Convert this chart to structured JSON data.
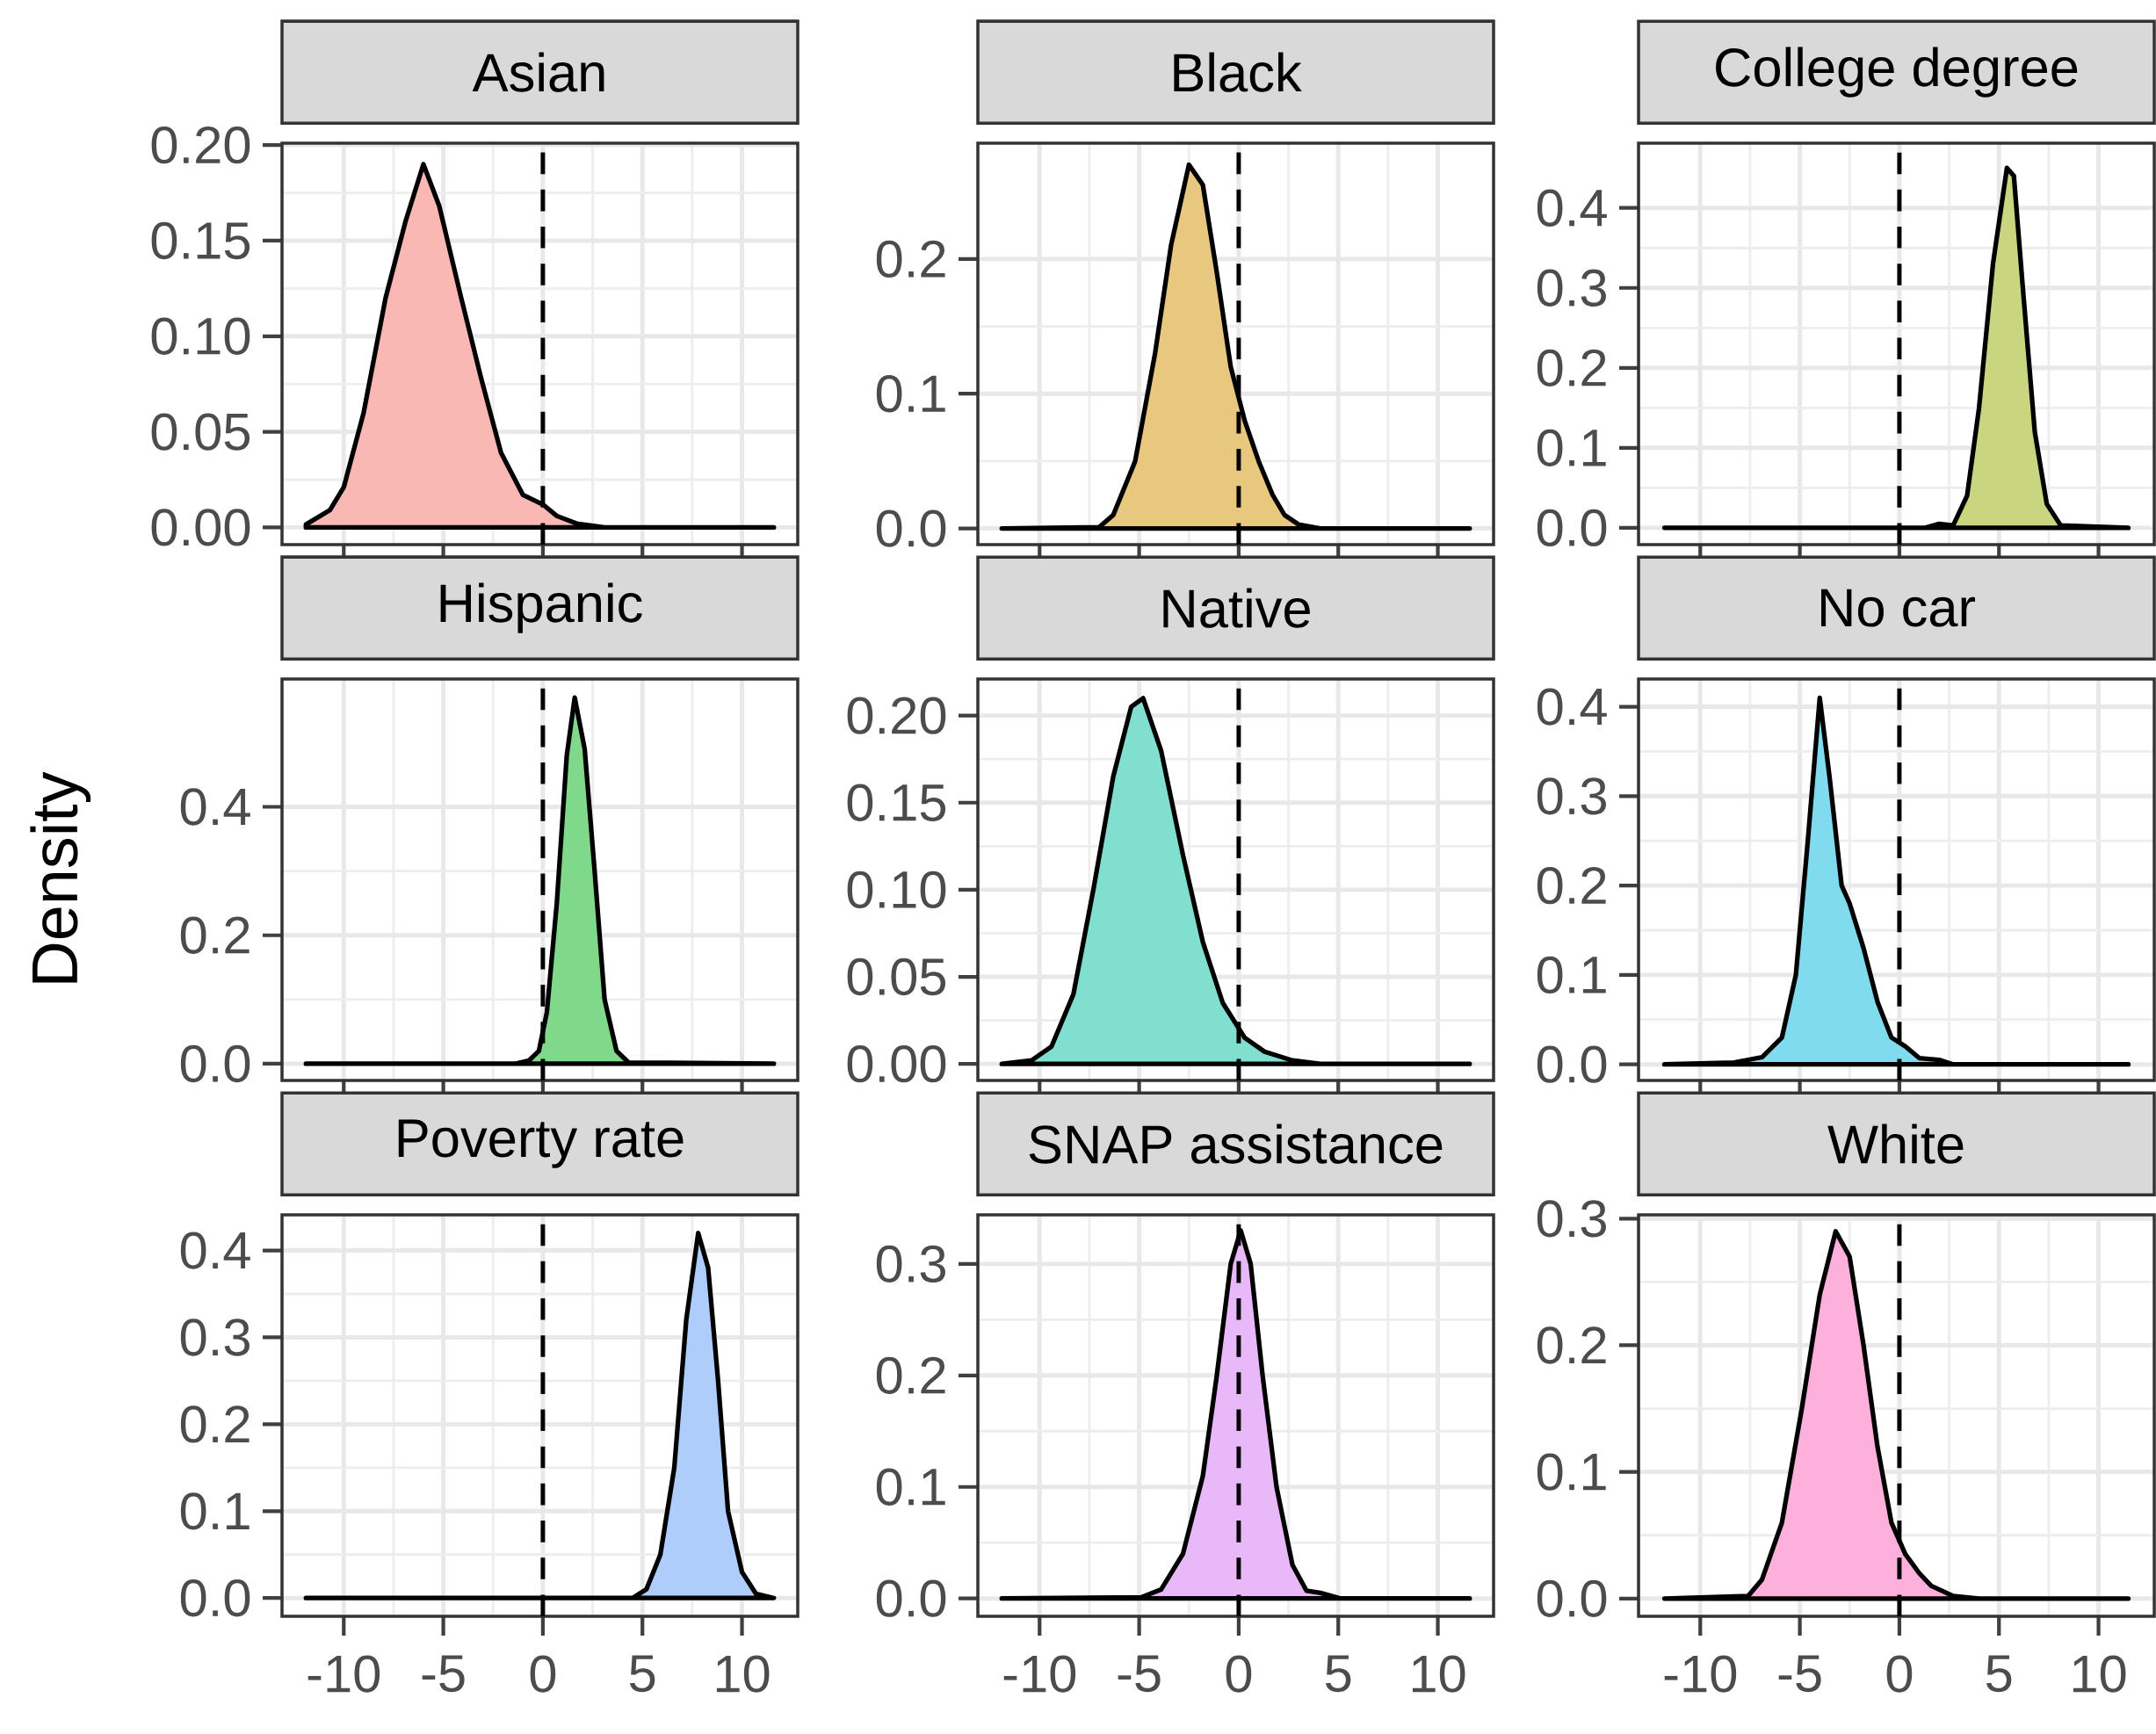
{
  "chart_data": [
    {
      "type": "area",
      "title": "Asian",
      "color": "#f9b8b4",
      "x": [
        -11.9,
        -10.7,
        -10,
        -9,
        -7.9,
        -6.9,
        -6,
        -5.2,
        -4.1,
        -3.1,
        -2.1,
        -1,
        0,
        0.7,
        1.7,
        3.1,
        11.6
      ],
      "values": [
        0.0015,
        0.009,
        0.021,
        0.06,
        0.12,
        0.16,
        0.19,
        0.168,
        0.12,
        0.078,
        0.039,
        0.017,
        0.012,
        0.006,
        0.002,
        0,
        0
      ],
      "xlim": [
        -13.1,
        12.8
      ],
      "ylim": [
        -0.009,
        0.201
      ],
      "xticks": [
        -10,
        -5,
        0,
        5,
        10
      ],
      "yticks": [
        {
          "value": 0,
          "label": "0.00"
        },
        0.05,
        {
          "value": 0.1,
          "label": "0.10"
        },
        0.15,
        {
          "value": 0.2,
          "label": "0.20"
        }
      ],
      "tick_labels": "y",
      "grid": true,
      "ref_lines": [
        {
          "axis": "x",
          "value": 0,
          "line_style": "dashed"
        }
      ]
    },
    {
      "type": "area",
      "title": "Black",
      "color": "#e8c77e",
      "x": [
        -11.9,
        -7,
        -6.3,
        -5.2,
        -4.2,
        -3.4,
        -2.5,
        -1.8,
        -1.1,
        -0.4,
        0.3,
        1,
        1.7,
        2.3,
        3,
        4.1,
        11.6
      ],
      "values": [
        0,
        0.001,
        0.01,
        0.05,
        0.13,
        0.21,
        0.27,
        0.255,
        0.19,
        0.12,
        0.08,
        0.05,
        0.025,
        0.01,
        0.003,
        0,
        0
      ],
      "xlim": [
        -13.1,
        12.8
      ],
      "ylim": [
        -0.012,
        0.286
      ],
      "xticks": [
        -10,
        -5,
        0,
        5,
        10
      ],
      "yticks": [
        {
          "value": 0,
          "label": "0.0"
        },
        0.1,
        0.2
      ],
      "tick_labels": "y",
      "grid": true,
      "ref_lines": [
        {
          "axis": "x",
          "value": 0,
          "line_style": "dashed"
        }
      ]
    },
    {
      "type": "area",
      "title": "College degree",
      "color": "#c9d57f",
      "x": [
        -11.8,
        1.3,
        2,
        2.7,
        3.4,
        4,
        4.7,
        5.4,
        5.75,
        6.2,
        6.8,
        7.4,
        8.1,
        11.5
      ],
      "values": [
        0,
        0,
        0.005,
        0.003,
        0.04,
        0.15,
        0.33,
        0.45,
        0.44,
        0.3,
        0.12,
        0.03,
        0.003,
        0
      ],
      "xlim": [
        -13.1,
        12.8
      ],
      "ylim": [
        -0.021,
        0.481
      ],
      "xticks": [
        -10,
        -5,
        0,
        5,
        10
      ],
      "yticks": [
        {
          "value": 0,
          "label": "0.0"
        },
        0.1,
        0.2,
        0.3,
        0.4
      ],
      "tick_labels": "y",
      "grid": true,
      "ref_lines": [
        {
          "axis": "x",
          "value": 0,
          "line_style": "dashed"
        }
      ]
    },
    {
      "type": "area",
      "title": "Hispanic",
      "ylabel": "Density",
      "color": "#80d88b",
      "x": [
        -11.9,
        -1.4,
        -0.7,
        -0.2,
        0.2,
        0.7,
        1.2,
        1.6,
        2.1,
        2.6,
        3.1,
        3.7,
        4.3,
        11.6
      ],
      "values": [
        0,
        0,
        0.005,
        0.02,
        0.08,
        0.25,
        0.48,
        0.57,
        0.49,
        0.3,
        0.1,
        0.02,
        0.002,
        0
      ],
      "xlim": [
        -13.1,
        12.8
      ],
      "ylim": [
        -0.026,
        0.599
      ],
      "xticks": [
        -10,
        -5,
        0,
        5,
        10
      ],
      "yticks": [
        {
          "value": 0,
          "label": "0.0"
        },
        0.2,
        0.4
      ],
      "tick_labels": "y",
      "grid": true,
      "ref_lines": [
        {
          "axis": "x",
          "value": 0,
          "line_style": "dashed"
        }
      ]
    },
    {
      "type": "area",
      "title": "Native",
      "color": "#80dfcf",
      "x": [
        -11.9,
        -10.4,
        -9.4,
        -8.3,
        -7.3,
        -6.3,
        -5.4,
        -4.8,
        -3.9,
        -2.8,
        -1.8,
        -0.8,
        0.3,
        1.3,
        2.7,
        4.1,
        11.6
      ],
      "values": [
        0,
        0.002,
        0.01,
        0.04,
        0.1,
        0.165,
        0.205,
        0.21,
        0.18,
        0.12,
        0.07,
        0.035,
        0.015,
        0.007,
        0.002,
        0,
        0
      ],
      "xlim": [
        -13.1,
        12.8
      ],
      "ylim": [
        -0.0095,
        0.221
      ],
      "xticks": [
        -10,
        -5,
        0,
        5,
        10
      ],
      "yticks": [
        {
          "value": 0,
          "label": "0.00"
        },
        0.05,
        {
          "value": 0.1,
          "label": "0.10"
        },
        0.15,
        {
          "value": 0.2,
          "label": "0.20"
        }
      ],
      "tick_labels": "y",
      "grid": true,
      "ref_lines": [
        {
          "axis": "x",
          "value": 0,
          "line_style": "dashed"
        }
      ]
    },
    {
      "type": "area",
      "title": "No car",
      "color": "#80dbef",
      "x": [
        -11.8,
        -8.3,
        -6.9,
        -5.9,
        -5.2,
        -4.6,
        -4,
        -3.5,
        -2.9,
        -2.5,
        -1.8,
        -1.1,
        -0.4,
        0.3,
        1,
        2,
        2.7,
        11.5
      ],
      "values": [
        0,
        0.002,
        0.008,
        0.03,
        0.1,
        0.25,
        0.41,
        0.32,
        0.2,
        0.18,
        0.13,
        0.07,
        0.03,
        0.02,
        0.007,
        0.005,
        0,
        0
      ],
      "xlim": [
        -13.1,
        12.8
      ],
      "ylim": [
        -0.018,
        0.431
      ],
      "xticks": [
        -10,
        -5,
        0,
        5,
        10
      ],
      "yticks": [
        {
          "value": 0,
          "label": "0.0"
        },
        0.1,
        0.2,
        0.3,
        0.4
      ],
      "tick_labels": "y",
      "grid": true,
      "ref_lines": [
        {
          "axis": "x",
          "value": 0,
          "line_style": "dashed"
        }
      ]
    },
    {
      "type": "area",
      "title": "Poverty rate",
      "color": "#aecdfa",
      "x": [
        -11.9,
        4.5,
        5.2,
        5.9,
        6.6,
        7.2,
        7.8,
        8.3,
        8.8,
        9.3,
        10,
        10.7,
        11.6
      ],
      "values": [
        0,
        0,
        0.01,
        0.05,
        0.15,
        0.32,
        0.42,
        0.38,
        0.25,
        0.1,
        0.03,
        0.005,
        0
      ],
      "xlim": [
        -13.1,
        12.8
      ],
      "ylim": [
        -0.021,
        0.441
      ],
      "xticks": [
        -10,
        -5,
        0,
        5,
        10
      ],
      "yticks": [
        {
          "value": 0,
          "label": "0.0"
        },
        0.1,
        0.2,
        0.3,
        0.4
      ],
      "grid": true,
      "ref_lines": [
        {
          "axis": "x",
          "value": 0,
          "line_style": "dashed"
        }
      ]
    },
    {
      "type": "area",
      "title": "SNAP assistance",
      "color": "#e8b8f8",
      "x": [
        -11.9,
        -4.9,
        -3.9,
        -2.8,
        -1.8,
        -1.1,
        -0.4,
        0.1,
        0.6,
        1.2,
        1.9,
        2.7,
        3.4,
        4.1,
        5.1,
        11.6
      ],
      "values": [
        0,
        0.001,
        0.008,
        0.04,
        0.11,
        0.2,
        0.3,
        0.33,
        0.3,
        0.2,
        0.1,
        0.03,
        0.007,
        0.005,
        0,
        0
      ],
      "xlim": [
        -13.1,
        12.8
      ],
      "ylim": [
        -0.016,
        0.344
      ],
      "xticks": [
        -10,
        -5,
        0,
        5,
        10
      ],
      "yticks": [
        {
          "value": 0,
          "label": "0.0"
        },
        0.1,
        0.2,
        0.3
      ],
      "grid": true,
      "ref_lines": [
        {
          "axis": "x",
          "value": 0,
          "line_style": "dashed"
        }
      ]
    },
    {
      "type": "area",
      "title": "White",
      "color": "#fdb0dc",
      "x": [
        -11.8,
        -7.6,
        -6.9,
        -5.9,
        -4.9,
        -4,
        -3.2,
        -2.5,
        -1.8,
        -1.1,
        -0.4,
        0.3,
        1,
        1.6,
        2.7,
        4,
        11.5
      ],
      "values": [
        0,
        0.002,
        0.015,
        0.06,
        0.15,
        0.24,
        0.29,
        0.27,
        0.2,
        0.12,
        0.06,
        0.035,
        0.02,
        0.01,
        0.002,
        0,
        0
      ],
      "xlim": [
        -13.1,
        12.8
      ],
      "ylim": [
        -0.014,
        0.303
      ],
      "xticks": [
        -10,
        -5,
        0,
        5,
        10
      ],
      "yticks": [
        {
          "value": 0,
          "label": "0.0"
        },
        0.1,
        0.2,
        0.3
      ],
      "grid": true,
      "ref_lines": [
        {
          "axis": "x",
          "value": 0,
          "line_style": "dashed"
        }
      ]
    }
  ]
}
